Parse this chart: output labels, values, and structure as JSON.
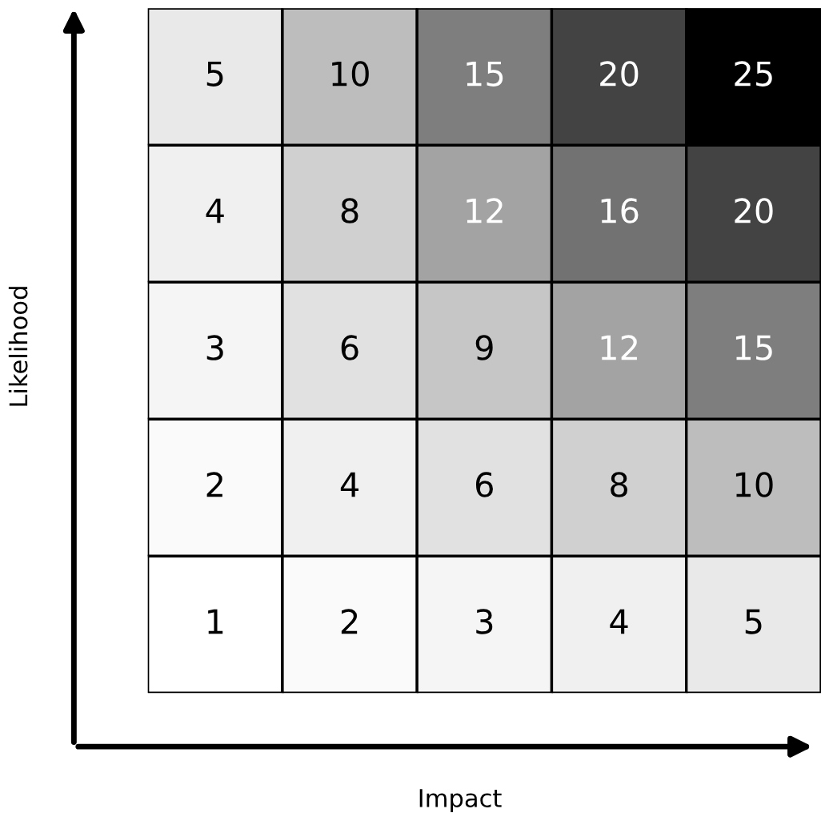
{
  "chart_data": {
    "type": "heatmap",
    "xlabel": "Impact",
    "ylabel": "Likelihood",
    "categories": [
      null,
      null,
      null,
      null,
      null
    ],
    "y_categories": [
      null,
      null,
      null,
      null,
      null
    ],
    "cells": [
      [
        5,
        10,
        15,
        20,
        25
      ],
      [
        4,
        8,
        12,
        16,
        20
      ],
      [
        3,
        6,
        9,
        12,
        15
      ],
      [
        2,
        4,
        6,
        8,
        10
      ],
      [
        1,
        2,
        3,
        4,
        5
      ]
    ],
    "data_labels": true
  }
}
